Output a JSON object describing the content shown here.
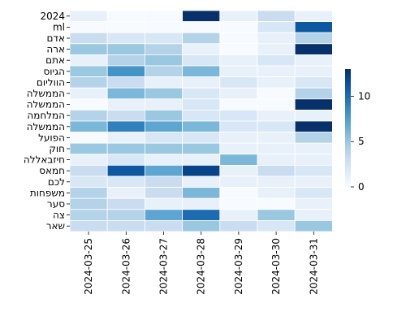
{
  "chart_data": {
    "type": "heatmap",
    "title": "",
    "xlabel": "",
    "ylabel": "",
    "x_categories": [
      "2024-03-25",
      "2024-03-26",
      "2024-03-27",
      "2024-03-28",
      "2024-03-29",
      "2024-03-30",
      "2024-03-31"
    ],
    "y_categories": [
      "2024",
      "ml",
      "אדם",
      "ארה",
      "אתם",
      "הגיוס",
      "הווליום",
      "הממשלה",
      "הממשלה",
      "המלחמה",
      "הממשלה",
      "הפועל",
      "חוק",
      "חיזבאללה",
      "חמאס",
      "לכם",
      "משפחות",
      "סער",
      "צה",
      "שאר"
    ],
    "values": [
      [
        1,
        0,
        0,
        13,
        1,
        3,
        1
      ],
      [
        0,
        0,
        0,
        0,
        0,
        2,
        11
      ],
      [
        3,
        2,
        2,
        4,
        0,
        1,
        4
      ],
      [
        5,
        5,
        4,
        1,
        0,
        1,
        13
      ],
      [
        1,
        4,
        5,
        2,
        1,
        2,
        1
      ],
      [
        5,
        8,
        4,
        6,
        1,
        1,
        1
      ],
      [
        4,
        3,
        1,
        1,
        2,
        1,
        2
      ],
      [
        1,
        6,
        5,
        2,
        1,
        0,
        4
      ],
      [
        0,
        1,
        1,
        2,
        0,
        0,
        13
      ],
      [
        4,
        3,
        5,
        2,
        2,
        1,
        1
      ],
      [
        6,
        9,
        7,
        6,
        2,
        2,
        13
      ],
      [
        0,
        1,
        2,
        2,
        1,
        1,
        4
      ],
      [
        5,
        5,
        5,
        5,
        1,
        1,
        1
      ],
      [
        1,
        2,
        1,
        1,
        6,
        1,
        1
      ],
      [
        3,
        11,
        7,
        12,
        1,
        3,
        2
      ],
      [
        2,
        2,
        3,
        1,
        1,
        1,
        1
      ],
      [
        4,
        1,
        3,
        6,
        0,
        1,
        2
      ],
      [
        4,
        3,
        1,
        1,
        0,
        0,
        1
      ],
      [
        4,
        4,
        7,
        10,
        1,
        5,
        1
      ],
      [
        3,
        3,
        3,
        5,
        3,
        2,
        5
      ]
    ],
    "colorbar": {
      "min": 0,
      "max": 13,
      "ticks": [
        0,
        5,
        10
      ]
    },
    "colormap": [
      "#f7fbff",
      "#deebf7",
      "#c6dbef",
      "#9ecae1",
      "#6baed6",
      "#4292c6",
      "#2171b5",
      "#08519c",
      "#08306b"
    ],
    "grid": true
  }
}
